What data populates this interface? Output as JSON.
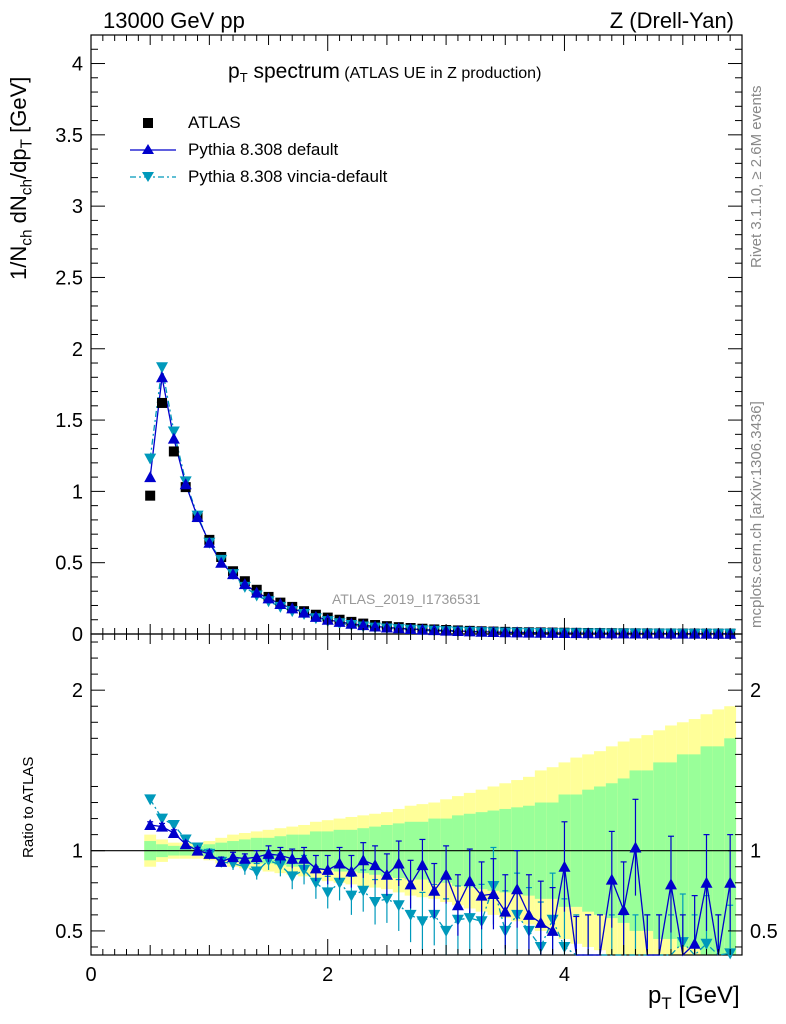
{
  "header": {
    "left": "13000 GeV pp",
    "right": "Z (Drell-Yan)"
  },
  "side_labels": {
    "rivet": "Rivet 3.1.10, ≥ 2.6M events",
    "mcplots": "mcplots.cern.ch [arXiv:1306.3436]"
  },
  "title": {
    "main_base": "p",
    "main_sub": "T",
    "main_rest": " spectrum",
    "suffix": "(ATLAS UE in Z production)"
  },
  "analysis_tag": "ATLAS_2019_I1736531",
  "axes": {
    "top_ylabel": {
      "p1": "1/N",
      "s1": "ch",
      "p2": " dN",
      "s2": "ch",
      "p3": "/dp",
      "s3": "T",
      "p4": " [GeV]"
    },
    "bottom_ylabel": "Ratio to ATLAS",
    "xlabel": {
      "p1": "p",
      "s1": "T",
      "p2": " [GeV]"
    }
  },
  "legend": [
    {
      "label": "ATLAS",
      "marker": "square",
      "color": "#000000"
    },
    {
      "label": "Pythia 8.308 default",
      "marker": "triangle-up",
      "color": "#0000cc"
    },
    {
      "label": "Pythia 8.308 vincia-default",
      "marker": "triangle-down",
      "color": "#0099bb"
    }
  ],
  "colors": {
    "data": "#000000",
    "default": "#0000cc",
    "vincia": "#0099bb",
    "band_inner": "#99ff99",
    "band_outer": "#ffff99"
  },
  "chart_data": [
    {
      "type": "scatter",
      "title": "pT spectrum (ATLAS UE in Z production)",
      "xlabel": "pT [GeV]",
      "ylabel": "1/Nch dNch/dpT [GeV]",
      "xlim": [
        0,
        5.5
      ],
      "ylim": [
        0,
        4.2
      ],
      "y_ticks": [
        0,
        0.5,
        1,
        1.5,
        2,
        2.5,
        3,
        3.5,
        4
      ],
      "x_ticks": [
        0,
        2,
        4
      ],
      "x": [
        0.5,
        0.6,
        0.7,
        0.8,
        0.9,
        1.0,
        1.1,
        1.2,
        1.3,
        1.4,
        1.5,
        1.6,
        1.7,
        1.8,
        1.9,
        2.0,
        2.1,
        2.2,
        2.3,
        2.4,
        2.5,
        2.6,
        2.7,
        2.8,
        2.9,
        3.0,
        3.1,
        3.2,
        3.3,
        3.4,
        3.5,
        3.6,
        3.7,
        3.8,
        3.9,
        4.0,
        4.1,
        4.2,
        4.3,
        4.4,
        4.5,
        4.6,
        4.7,
        4.8,
        4.9,
        5.0,
        5.1,
        5.2,
        5.3,
        5.4
      ],
      "series": [
        {
          "name": "ATLAS",
          "values": [
            0.97,
            1.62,
            1.28,
            1.03,
            0.82,
            0.66,
            0.54,
            0.44,
            0.37,
            0.31,
            0.26,
            0.22,
            0.19,
            0.16,
            0.135,
            0.115,
            0.1,
            0.085,
            0.073,
            0.063,
            0.055,
            0.048,
            0.042,
            0.037,
            0.032,
            0.028,
            0.025,
            0.022,
            0.019,
            0.017,
            0.015,
            0.013,
            0.012,
            0.011,
            0.01,
            0.009,
            0.008,
            0.007,
            0.0065,
            0.006,
            0.0055,
            0.005,
            0.0045,
            0.004,
            0.0037,
            0.0034,
            0.0031,
            0.0028,
            0.0026,
            0.0024
          ]
        },
        {
          "name": "Pythia 8.308 default",
          "values": [
            1.1,
            1.8,
            1.37,
            1.05,
            0.82,
            0.64,
            0.5,
            0.42,
            0.35,
            0.29,
            0.25,
            0.21,
            0.18,
            0.15,
            0.12,
            0.1,
            0.085,
            0.072,
            0.062,
            0.053,
            0.046,
            0.04,
            0.035,
            0.031,
            0.027,
            0.024,
            0.021,
            0.018,
            0.016,
            0.014,
            0.012,
            0.011,
            0.01,
            0.009,
            0.008,
            0.007,
            0.006,
            0.0055,
            0.005,
            0.0045,
            0.004,
            0.0037,
            0.0034,
            0.0031,
            0.0028,
            0.0026,
            0.0024,
            0.0022,
            0.002,
            0.0019
          ]
        },
        {
          "name": "Pythia 8.308 vincia-default",
          "values": [
            1.23,
            1.87,
            1.42,
            1.07,
            0.83,
            0.64,
            0.52,
            0.42,
            0.33,
            0.27,
            0.23,
            0.19,
            0.16,
            0.14,
            0.11,
            0.09,
            0.075,
            0.063,
            0.053,
            0.045,
            0.039,
            0.034,
            0.03,
            0.026,
            0.023,
            0.02,
            0.017,
            0.015,
            0.013,
            0.011,
            0.01,
            0.009,
            0.008,
            0.007,
            0.006,
            0.0055,
            0.005,
            0.0045,
            0.004,
            0.0037,
            0.0034,
            0.0031,
            0.0028,
            0.0025,
            0.0023,
            0.0021,
            0.0019,
            0.0017,
            0.0016,
            0.0015
          ]
        }
      ]
    },
    {
      "type": "scatter",
      "ylabel": "Ratio to ATLAS",
      "xlabel": "pT [GeV]",
      "xlim": [
        0,
        5.5
      ],
      "ylim": [
        0.35,
        2.35
      ],
      "y_ticks": [
        0.5,
        1,
        2
      ],
      "x_ticks": [
        0,
        2,
        4
      ],
      "x": [
        0.5,
        0.6,
        0.7,
        0.8,
        0.9,
        1.0,
        1.1,
        1.2,
        1.3,
        1.4,
        1.5,
        1.6,
        1.7,
        1.8,
        1.9,
        2.0,
        2.1,
        2.2,
        2.3,
        2.4,
        2.5,
        2.6,
        2.7,
        2.8,
        2.9,
        3.0,
        3.1,
        3.2,
        3.3,
        3.4,
        3.5,
        3.6,
        3.7,
        3.8,
        3.9,
        4.0,
        4.1,
        4.2,
        4.3,
        4.4,
        4.5,
        4.6,
        4.7,
        4.8,
        4.9,
        5.0,
        5.1,
        5.2,
        5.3,
        5.4
      ],
      "band_inner_halfwidth": [
        0.06,
        0.04,
        0.03,
        0.03,
        0.03,
        0.04,
        0.05,
        0.06,
        0.07,
        0.08,
        0.08,
        0.09,
        0.1,
        0.1,
        0.12,
        0.12,
        0.13,
        0.13,
        0.14,
        0.15,
        0.16,
        0.17,
        0.18,
        0.18,
        0.2,
        0.2,
        0.22,
        0.23,
        0.24,
        0.25,
        0.26,
        0.27,
        0.28,
        0.3,
        0.3,
        0.35,
        0.35,
        0.38,
        0.4,
        0.42,
        0.45,
        0.5,
        0.5,
        0.55,
        0.55,
        0.6,
        0.6,
        0.65,
        0.65,
        0.7
      ],
      "band_outer_halfwidth": [
        0.1,
        0.07,
        0.05,
        0.05,
        0.05,
        0.06,
        0.08,
        0.1,
        0.11,
        0.12,
        0.13,
        0.14,
        0.15,
        0.16,
        0.18,
        0.19,
        0.2,
        0.21,
        0.22,
        0.23,
        0.24,
        0.26,
        0.28,
        0.29,
        0.3,
        0.32,
        0.34,
        0.36,
        0.38,
        0.4,
        0.42,
        0.44,
        0.46,
        0.5,
        0.52,
        0.55,
        0.58,
        0.6,
        0.62,
        0.65,
        0.68,
        0.7,
        0.72,
        0.75,
        0.78,
        0.8,
        0.82,
        0.85,
        0.88,
        0.9
      ],
      "series": [
        {
          "name": "Pythia 8.308 default",
          "values": [
            1.16,
            1.15,
            1.11,
            1.04,
            1.0,
            0.98,
            0.93,
            0.96,
            0.95,
            0.96,
            0.98,
            0.97,
            0.95,
            0.95,
            0.89,
            0.88,
            0.92,
            0.87,
            0.94,
            0.91,
            0.85,
            0.92,
            0.79,
            0.91,
            0.75,
            0.85,
            0.66,
            0.81,
            0.72,
            0.73,
            0.62,
            0.76,
            0.6,
            0.55,
            0.5,
            0.9,
            0.3,
            0.3,
            0.3,
            0.82,
            0.63,
            1.02,
            0.3,
            0.3,
            0.79,
            0.3,
            0.42,
            0.8,
            0.3,
            0.8
          ],
          "err": [
            0.02,
            0.02,
            0.02,
            0.02,
            0.02,
            0.02,
            0.03,
            0.03,
            0.03,
            0.04,
            0.05,
            0.05,
            0.06,
            0.07,
            0.08,
            0.09,
            0.1,
            0.1,
            0.11,
            0.12,
            0.13,
            0.14,
            0.15,
            0.16,
            0.17,
            0.18,
            0.19,
            0.2,
            0.21,
            0.22,
            0.23,
            0.24,
            0.25,
            0.26,
            0.27,
            0.28,
            0.29,
            0.3,
            0.3,
            0.3,
            0.3,
            0.3,
            0.3,
            0.3,
            0.3,
            0.3,
            0.3,
            0.3,
            0.3,
            0.3
          ]
        },
        {
          "name": "Pythia 8.308 vincia-default",
          "values": [
            1.32,
            1.2,
            1.16,
            1.07,
            1.02,
            0.98,
            0.93,
            0.92,
            0.9,
            0.87,
            0.94,
            0.91,
            0.84,
            0.88,
            0.8,
            0.74,
            0.8,
            0.72,
            0.75,
            0.68,
            0.7,
            0.66,
            0.6,
            0.56,
            0.6,
            0.5,
            0.57,
            0.58,
            0.56,
            0.78,
            0.5,
            0.6,
            0.5,
            0.4,
            0.57,
            0.4,
            0.3,
            0.3,
            0.3,
            0.3,
            0.3,
            0.3,
            0.3,
            0.3,
            0.3,
            0.43,
            0.3,
            0.42,
            0.3,
            0.36
          ],
          "err": [
            0.02,
            0.02,
            0.02,
            0.02,
            0.02,
            0.03,
            0.03,
            0.04,
            0.05,
            0.05,
            0.06,
            0.07,
            0.08,
            0.09,
            0.1,
            0.1,
            0.11,
            0.12,
            0.13,
            0.14,
            0.15,
            0.16,
            0.17,
            0.18,
            0.19,
            0.2,
            0.21,
            0.22,
            0.23,
            0.24,
            0.25,
            0.26,
            0.27,
            0.28,
            0.29,
            0.3,
            0.3,
            0.3,
            0.3,
            0.3,
            0.3,
            0.3,
            0.3,
            0.3,
            0.3,
            0.3,
            0.3,
            0.3,
            0.3,
            0.3
          ]
        }
      ]
    }
  ]
}
